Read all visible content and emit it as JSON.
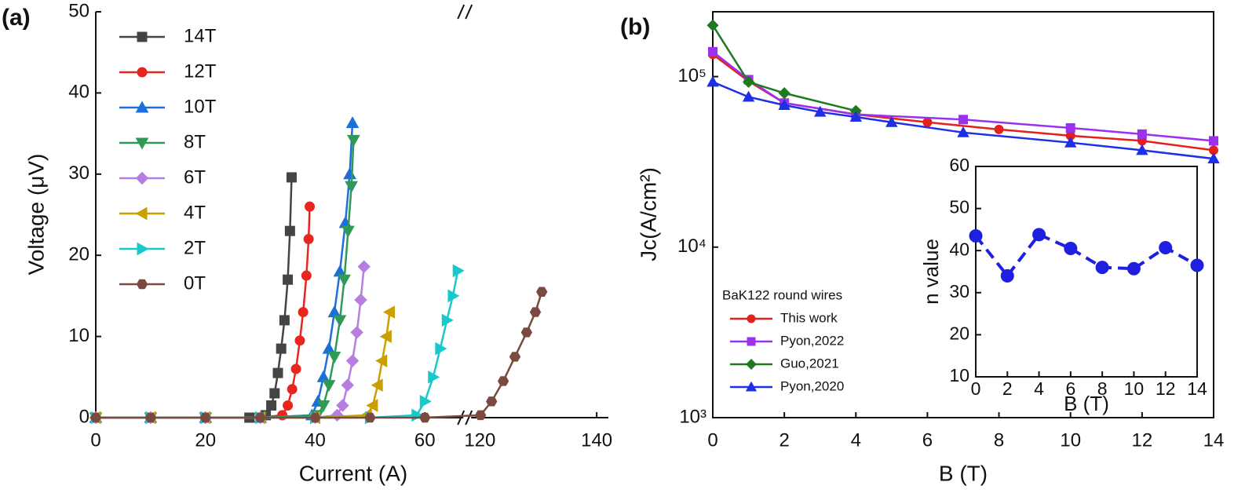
{
  "chart_data": [
    {
      "type": "line",
      "panel_label": "(a)",
      "x_label": "Current (A)",
      "y_label": "Voltage (μV)",
      "xlim": [
        0,
        142
      ],
      "xbreak": [
        67,
        118.5
      ],
      "xticks": [
        0,
        20,
        40,
        60,
        120,
        140
      ],
      "ylim": [
        0,
        50
      ],
      "yticks": [
        0,
        10,
        20,
        30,
        40,
        50
      ],
      "grid": false,
      "legend": "upper left",
      "series": [
        {
          "name": "14T",
          "color": "#444444",
          "marker": "square",
          "x": [
            0,
            10,
            20,
            28,
            31,
            32,
            32.6,
            33.2,
            33.8,
            34.4,
            35,
            35.4,
            35.7
          ],
          "values": [
            0,
            0,
            0,
            0,
            0.3,
            1.5,
            3,
            5.5,
            8.5,
            12,
            17,
            23,
            29.6
          ]
        },
        {
          "name": "12T",
          "color": "#e8251e",
          "marker": "circle",
          "x": [
            0,
            10,
            20,
            30,
            34,
            35,
            35.8,
            36.5,
            37.2,
            37.8,
            38.4,
            38.8,
            39
          ],
          "values": [
            0,
            0,
            0,
            0,
            0.3,
            1.5,
            3.5,
            6,
            9.5,
            13,
            17.5,
            22,
            26
          ]
        },
        {
          "name": "10T",
          "color": "#1c6fd8",
          "marker": "tri-up",
          "x": [
            0,
            10,
            20,
            30,
            39.4,
            40.5,
            41.5,
            42.5,
            43.5,
            44.5,
            45.5,
            46.3,
            46.8
          ],
          "values": [
            0,
            0,
            0,
            0,
            0.3,
            2,
            5,
            8.5,
            13,
            18,
            24,
            30,
            36.3
          ]
        },
        {
          "name": "8T",
          "color": "#2e9a55",
          "marker": "tri-down",
          "x": [
            0,
            10,
            20,
            30,
            40.4,
            41.5,
            42.5,
            43.5,
            44.5,
            45.3,
            46,
            46.6,
            47
          ],
          "values": [
            0,
            0,
            0,
            0,
            0.3,
            1.5,
            4,
            7.5,
            12,
            17,
            23,
            28.5,
            34.2
          ]
        },
        {
          "name": "6T",
          "color": "#b57ee0",
          "marker": "diamond",
          "x": [
            0,
            10,
            20,
            30,
            40,
            44,
            45,
            45.9,
            46.8,
            47.6,
            48.3,
            48.9
          ],
          "values": [
            0,
            0,
            0,
            0,
            0,
            0.3,
            1.5,
            4,
            7,
            10.5,
            14.5,
            18.6
          ]
        },
        {
          "name": "4T",
          "color": "#c9a000",
          "marker": "tri-left",
          "x": [
            0,
            10,
            20,
            30,
            40,
            49.4,
            50.5,
            51.4,
            52.2,
            53,
            53.6
          ],
          "values": [
            0,
            0,
            0,
            0,
            0,
            0.3,
            1.5,
            4,
            7,
            10,
            13
          ]
        },
        {
          "name": "2T",
          "color": "#18c8cc",
          "marker": "tri-right",
          "x": [
            0,
            10,
            20,
            30,
            40,
            50,
            58.5,
            60,
            61.5,
            62.8,
            64,
            65.1,
            66
          ],
          "values": [
            0,
            0,
            0,
            0,
            0,
            0,
            0.3,
            2,
            5,
            8.5,
            12,
            15,
            18.1
          ]
        },
        {
          "name": "0T",
          "color": "#7a4a40",
          "marker": "hexagon",
          "x": [
            0,
            10,
            20,
            30,
            40,
            50,
            60,
            120.1,
            122,
            124,
            126,
            128,
            129.5,
            130.6
          ],
          "values": [
            0,
            0,
            0,
            0,
            0,
            0,
            0,
            0.3,
            2,
            4.5,
            7.5,
            10.5,
            13,
            15.5
          ]
        }
      ]
    },
    {
      "type": "line",
      "panel_label": "(b)",
      "x_label": "B (T)",
      "y_label": "Jc(A/cm²)",
      "xlim": [
        0,
        14
      ],
      "xticks": [
        0,
        2,
        4,
        6,
        8,
        10,
        12,
        14
      ],
      "ylim": [
        1000,
        240000
      ],
      "log_y": true,
      "yticks": [
        {
          "value": 1000,
          "label": "10³"
        },
        {
          "value": 10000,
          "label": "10⁴"
        },
        {
          "value": 100000,
          "label": "10⁵"
        }
      ],
      "grid": false,
      "legend": "lower left",
      "legend_title": "BaK122 round wires",
      "series": [
        {
          "name": "This work",
          "color": "#e4201c",
          "marker": "circle",
          "x": [
            0,
            1,
            2,
            4,
            6,
            8,
            10,
            12,
            14
          ],
          "values": [
            135000,
            94000,
            70000,
            60000,
            54000,
            49000,
            45000,
            42000,
            37000
          ]
        },
        {
          "name": "Pyon,2022",
          "color": "#9b30ee",
          "marker": "square",
          "x": [
            0,
            1,
            2,
            4,
            7,
            10,
            12,
            14
          ],
          "values": [
            140000,
            96000,
            70000,
            60000,
            56000,
            50000,
            46000,
            42000
          ]
        },
        {
          "name": "Guo,2021",
          "color": "#1f7a1f",
          "marker": "diamond",
          "x": [
            0,
            1,
            2,
            4
          ],
          "values": [
            200000,
            93000,
            80000,
            63000
          ]
        },
        {
          "name": "Pyon,2020",
          "color": "#1f2fe6",
          "marker": "tri-up",
          "x": [
            0,
            1,
            2,
            3,
            4,
            5,
            7,
            10,
            12,
            14
          ],
          "values": [
            93000,
            76000,
            68000,
            62000,
            58000,
            54000,
            47000,
            41000,
            37000,
            33000
          ]
        }
      ]
    },
    {
      "type": "line",
      "x_label": "B (T)",
      "y_label": "n value",
      "xlim": [
        0,
        14
      ],
      "xticks": [
        0,
        2,
        4,
        6,
        8,
        10,
        12,
        14
      ],
      "ylim": [
        10,
        60
      ],
      "yticks": [
        10,
        20,
        30,
        40,
        50,
        60
      ],
      "grid": false,
      "series": [
        {
          "color": "#1f1fe0",
          "marker": "circle",
          "line_style": "dashed",
          "x": [
            0,
            2,
            4,
            6,
            8,
            10,
            12,
            14
          ],
          "values": [
            43.5,
            34,
            43.8,
            40.5,
            36,
            35.7,
            40.7,
            36.5
          ]
        }
      ]
    }
  ]
}
